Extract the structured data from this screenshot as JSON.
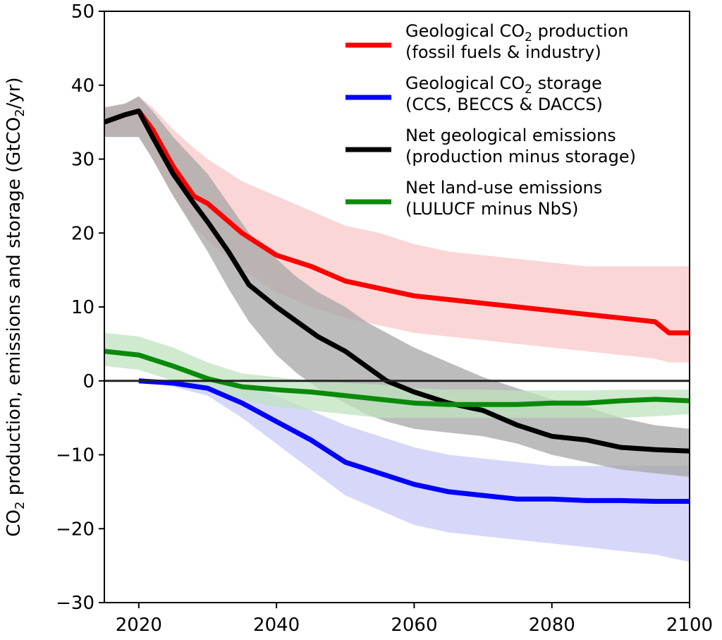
{
  "chart_data": {
    "type": "line",
    "xlim": [
      2015,
      2100
    ],
    "ylim": [
      -30,
      50
    ],
    "x_ticks": [
      "2020",
      "2040",
      "2060",
      "2080",
      "2100"
    ],
    "y_ticks": [
      "50",
      "40",
      "30",
      "20",
      "10",
      "0",
      "−10",
      "−20",
      "−30"
    ],
    "ylabel": {
      "main": "CO",
      "sub": "2",
      "rest": " production, emissions and storage (GtCO",
      "sub2": "2",
      "end": "/yr)"
    },
    "zero_line_color": "#222222",
    "series": [
      {
        "name_line1": "Geological CO",
        "name_line1_sub": "2",
        "name_line1_rest": " production",
        "name_line2": "(fossil fuels & industry)",
        "color": "#ff0000",
        "band_color": "#f9c8c8",
        "x": [
          2015,
          2018,
          2020,
          2022,
          2025,
          2028,
          2030,
          2035,
          2040,
          2045,
          2050,
          2055,
          2060,
          2065,
          2070,
          2075,
          2080,
          2085,
          2090,
          2095,
          2097,
          2100
        ],
        "y": [
          35,
          36,
          36.5,
          34,
          29,
          25,
          24,
          20,
          17,
          15.5,
          13.5,
          12.5,
          11.5,
          11,
          10.5,
          10,
          9.5,
          9,
          8.5,
          8,
          6.5,
          6.5
        ],
        "band_low": [
          33,
          33,
          33,
          30,
          25,
          21,
          19,
          15,
          12,
          10,
          8.5,
          7.5,
          6.5,
          6,
          5.5,
          5,
          4.5,
          4,
          3.5,
          3,
          2.5,
          2.5
        ],
        "band_high": [
          37,
          37.5,
          38.5,
          37,
          34,
          31.5,
          30,
          27,
          25,
          23,
          21,
          20,
          18.5,
          17.5,
          17,
          16.5,
          16,
          15.5,
          15.5,
          15.5,
          15.5,
          15.5
        ]
      },
      {
        "name_line1": "Geological CO",
        "name_line1_sub": "2",
        "name_line1_rest": " storage",
        "name_line2": "(CCS, BECCS & DACCS)",
        "color": "#0000ff",
        "band_color": "#c9c9f7",
        "x": [
          2020,
          2025,
          2030,
          2035,
          2040,
          2045,
          2050,
          2055,
          2060,
          2065,
          2070,
          2075,
          2080,
          2085,
          2090,
          2095,
          2100
        ],
        "y": [
          0,
          -0.3,
          -1,
          -3,
          -5.5,
          -8,
          -11,
          -12.5,
          -14,
          -15,
          -15.5,
          -16,
          -16,
          -16.2,
          -16.2,
          -16.3,
          -16.3
        ],
        "band_low": [
          0,
          -0.8,
          -2,
          -5,
          -8.5,
          -12,
          -15.5,
          -17.5,
          -19.5,
          -20.5,
          -21,
          -21.5,
          -22,
          -22.5,
          -23,
          -23.5,
          -24.5
        ],
        "band_high": [
          0,
          0,
          0,
          -0.5,
          -2,
          -4,
          -6,
          -7.5,
          -9,
          -10,
          -10.5,
          -11,
          -11.5,
          -11.5,
          -11.5,
          -11.5,
          -11.5
        ]
      },
      {
        "name_line1": "Net geological emissions",
        "name_line2": "(production minus storage)",
        "color": "#000000",
        "band_color": "#a6a6a6",
        "x": [
          2015,
          2018,
          2020,
          2022,
          2025,
          2028,
          2030,
          2033,
          2036,
          2040,
          2043,
          2046,
          2050,
          2053,
          2056,
          2060,
          2065,
          2070,
          2075,
          2080,
          2085,
          2090,
          2095,
          2100
        ],
        "y": [
          35,
          36,
          36.5,
          33,
          28,
          24,
          21.5,
          17.5,
          13,
          10,
          8,
          6,
          4,
          2,
          0,
          -1.5,
          -3,
          -4,
          -6,
          -7.5,
          -8,
          -9,
          -9.3,
          -9.5
        ],
        "band_low": [
          33,
          33,
          33,
          30,
          25,
          20.5,
          17.5,
          12.5,
          8,
          3.5,
          1,
          -1,
          -3,
          -4.5,
          -5.5,
          -6.5,
          -7,
          -7.5,
          -8.5,
          -10,
          -11,
          -12,
          -12.5,
          -13
        ],
        "band_high": [
          37,
          37.5,
          38.5,
          36.5,
          33,
          30,
          28,
          24,
          20,
          16.5,
          14,
          12,
          10,
          8,
          6.5,
          4.5,
          2.5,
          0.5,
          -1,
          -2.5,
          -3.5,
          -5,
          -6,
          -6.5
        ]
      },
      {
        "name_line1": "Net land-use emissions",
        "name_line2": "(LULUCF minus NbS)",
        "color": "#0a8a0a",
        "band_color": "#bfe3bf",
        "x": [
          2015,
          2020,
          2025,
          2030,
          2035,
          2040,
          2045,
          2050,
          2055,
          2060,
          2065,
          2070,
          2075,
          2080,
          2085,
          2090,
          2095,
          2100
        ],
        "y": [
          4,
          3.5,
          2,
          0.3,
          -0.8,
          -1.2,
          -1.5,
          -2,
          -2.5,
          -3,
          -3.2,
          -3.2,
          -3.2,
          -3,
          -3,
          -2.7,
          -2.5,
          -2.7
        ],
        "band_low": [
          2,
          1.5,
          0,
          -1.5,
          -2.5,
          -3.5,
          -4,
          -4.5,
          -5,
          -5,
          -5,
          -5,
          -5,
          -5,
          -5,
          -5,
          -4.8,
          -4.5
        ],
        "band_high": [
          6.5,
          6,
          4.5,
          2.5,
          1,
          0.5,
          0,
          -0.3,
          -0.5,
          -1,
          -1.2,
          -1.2,
          -1.3,
          -1.3,
          -1.3,
          -1.2,
          -1.2,
          -1.2
        ]
      }
    ],
    "legend_position": "top-right"
  }
}
